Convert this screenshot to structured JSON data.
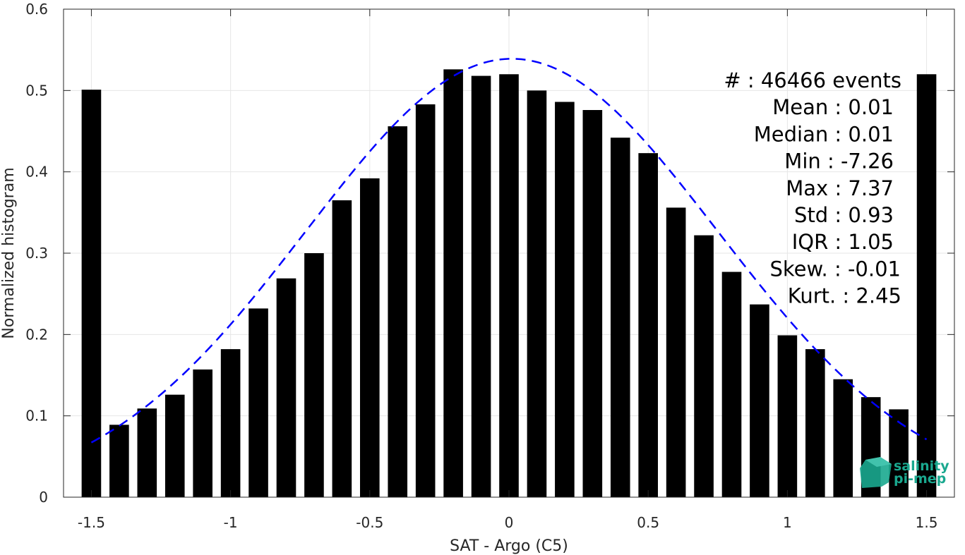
{
  "chart_data": {
    "type": "bar",
    "xlabel": "SAT - Argo (C5)",
    "ylabel": "Normalized histogram",
    "xlim": [
      -1.6,
      1.6
    ],
    "ylim": [
      0,
      0.6
    ],
    "xticks": [
      -1.5,
      -1,
      -0.5,
      0,
      0.5,
      1,
      1.5
    ],
    "xtick_labels": [
      "-1.5",
      "-1",
      "-0.5",
      "0",
      "0.5",
      "1",
      "1.5"
    ],
    "yticks": [
      0,
      0.1,
      0.2,
      0.3,
      0.4,
      0.5,
      0.6
    ],
    "ytick_labels": [
      "0",
      "0.1",
      "0.2",
      "0.3",
      "0.4",
      "0.5",
      "0.6"
    ],
    "grid": true,
    "bar_color": "#000000",
    "x": [
      -1.5,
      -1.4,
      -1.3,
      -1.2,
      -1.1,
      -1.0,
      -0.9,
      -0.8,
      -0.7,
      -0.6,
      -0.5,
      -0.4,
      -0.3,
      -0.2,
      -0.1,
      0.0,
      0.1,
      0.2,
      0.3,
      0.4,
      0.5,
      0.6,
      0.7,
      0.8,
      0.9,
      1.0,
      1.1,
      1.2,
      1.3,
      1.4,
      1.5
    ],
    "values": [
      0.501,
      0.089,
      0.109,
      0.126,
      0.157,
      0.182,
      0.232,
      0.269,
      0.3,
      0.365,
      0.392,
      0.456,
      0.483,
      0.526,
      0.518,
      0.52,
      0.5,
      0.486,
      0.476,
      0.442,
      0.423,
      0.356,
      0.322,
      0.277,
      0.237,
      0.199,
      0.182,
      0.145,
      0.123,
      0.108,
      0.52
    ],
    "fit": {
      "type": "gaussian",
      "mean": 0.01,
      "std": 0.74,
      "peak": 0.539,
      "x_range": [
        -1.5,
        1.5
      ],
      "color": "#0000ff",
      "style": "dashed"
    },
    "annotations": [
      "#  : 46466 events",
      "Mean : 0.01",
      "Median : 0.01",
      "Min : -7.26",
      "Max : 7.37",
      "Std : 0.93",
      "IQR : 1.05",
      "Skew. : -0.01",
      "Kurt. : 2.45"
    ],
    "logo": {
      "line1": "salinity",
      "line2": "pi-mep",
      "color": "#1aa88f"
    }
  }
}
